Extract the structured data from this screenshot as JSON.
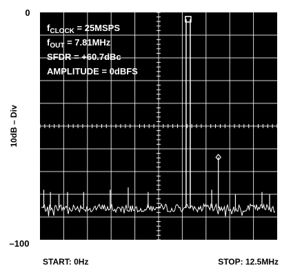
{
  "chart_data": {
    "type": "line",
    "title": "",
    "xlabel": "",
    "ylabel": "10dB – Div",
    "y_top_label": "0",
    "y_bottom_label": "–100",
    "x_start_label": "START: 0Hz",
    "x_stop_label": "STOP: 12.5MHz",
    "xlim": [
      0,
      12.5
    ],
    "ylim": [
      -100,
      0
    ],
    "grid": true,
    "annotations": {
      "line1_main": "f",
      "line1_sub": "CLOCK",
      "line1_rest": " = 25MSPS",
      "line2_main": "f",
      "line2_sub": "OUT",
      "line2_rest": " = 7.81MHz",
      "line3": "SFDR = +60.7dBc",
      "line4": "AMPLITUDE = 0dBFS"
    },
    "fundamental": {
      "freq_mhz": 7.81,
      "amplitude_db": -3
    },
    "spur": {
      "freq_mhz": 9.4,
      "amplitude_db": -63.7
    },
    "noise_floor_db": -86,
    "noise_spurs": [
      {
        "freq_mhz": 0.2,
        "amplitude_db": -78
      },
      {
        "freq_mhz": 0.55,
        "amplitude_db": -79
      },
      {
        "freq_mhz": 1.0,
        "amplitude_db": -80
      },
      {
        "freq_mhz": 1.45,
        "amplitude_db": -79
      },
      {
        "freq_mhz": 2.3,
        "amplitude_db": -79
      },
      {
        "freq_mhz": 3.7,
        "amplitude_db": -78
      },
      {
        "freq_mhz": 4.65,
        "amplitude_db": -77
      },
      {
        "freq_mhz": 5.7,
        "amplitude_db": -79
      },
      {
        "freq_mhz": 9.05,
        "amplitude_db": -78
      },
      {
        "freq_mhz": 10.3,
        "amplitude_db": -80
      },
      {
        "freq_mhz": 11.7,
        "amplitude_db": -79
      },
      {
        "freq_mhz": 12.1,
        "amplitude_db": -80
      }
    ],
    "colors": {
      "screen": "#000000",
      "trace": "#ffffff",
      "grid": "#ffffff"
    }
  }
}
